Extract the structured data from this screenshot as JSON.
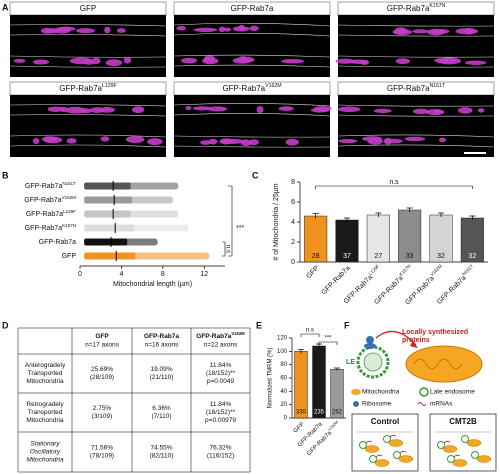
{
  "figure": {
    "panel_letters": [
      "A",
      "B",
      "C",
      "D",
      "E",
      "F"
    ],
    "images": [
      {
        "base": "GFP"
      },
      {
        "base": "GFP-Rab7a"
      },
      {
        "base": "GFP-Rab7a",
        "sup": "K157N"
      },
      {
        "base": "GFP-Rab7a",
        "sup": "L129F"
      },
      {
        "base": "GFP-Rab7a",
        "sup": "V162M"
      },
      {
        "base": "GFP-Rab7a",
        "sup": "N161T"
      }
    ],
    "table": {
      "header": [
        {
          "name": {
            "base": "GFP"
          },
          "n": "n=17 axons"
        },
        {
          "name": {
            "base": "GFP-Rab7a"
          },
          "n": "n=16 axons"
        },
        {
          "name": {
            "base": "GFP-Rab7a",
            "sup": "V162M"
          },
          "n": "n=22 axons"
        }
      ],
      "rows": [
        {
          "label": [
            "Anterogradely",
            "Transported",
            "Mitochondria"
          ],
          "cells": [
            [
              "25.69%",
              "(28/109)"
            ],
            [
              "19.09%",
              "(21/110)"
            ],
            [
              "11.84%",
              "(18/152)**",
              "p=0.0049"
            ]
          ]
        },
        {
          "label": [
            "Retrogradely",
            "Transported",
            "Mitochondria"
          ],
          "cells": [
            [
              "2.75%",
              "(3/109)"
            ],
            [
              "6.36%",
              "(7/110)"
            ],
            [
              "11.84%",
              "(18/152)**",
              "p=0.00979"
            ]
          ]
        },
        {
          "label": [
            "Stationary",
            "Oscillatory",
            "Mitochondria"
          ],
          "cells": [
            [
              "71.56%",
              "(78/109)"
            ],
            [
              "74.55%",
              "(82/110)"
            ],
            [
              "76.32%",
              "(116/152)"
            ]
          ]
        }
      ]
    },
    "diagram": {
      "proteins": [
        "Locally synthesized",
        "proteins"
      ],
      "le": "LE",
      "legend": [
        "Mitochondria",
        "Ribosome",
        "Late endosome",
        "mRNAs"
      ],
      "conditions": [
        "Control",
        "CMT2B"
      ]
    }
  },
  "chart_data": [
    {
      "type": "strip",
      "categories": [
        {
          "base": "GFP-Rab7a",
          "sup": "N161T"
        },
        {
          "base": "GFP-Rab7a",
          "sup": "V162M"
        },
        {
          "base": "GFP-Rab7a",
          "sup": "L129F"
        },
        {
          "base": "GFP-Rab7a",
          "sup": "K157N"
        },
        {
          "base": "GFP-Rab7a"
        },
        {
          "base": "GFP"
        }
      ],
      "colors": [
        "#555555",
        "#9a9a9a",
        "#c4c4c4",
        "#dcdcdc",
        "#111111",
        "#f0921e"
      ],
      "min": [
        0.4,
        0.4,
        0.4,
        0.4,
        0.4,
        0.4
      ],
      "median": [
        3.2,
        3.3,
        3.2,
        3.4,
        3.0,
        3.5
      ],
      "max": [
        9.5,
        9.0,
        9.5,
        10.5,
        7.5,
        12.5
      ],
      "xlim": [
        0,
        14
      ],
      "xticks": [
        0,
        4,
        8,
        12
      ],
      "xlabel": "Mitochondrial length (µm)",
      "annotations": [
        "***",
        "n.s"
      ]
    },
    {
      "type": "bar",
      "categories": [
        {
          "base": "GFP"
        },
        {
          "base": "GFP-Rab7a"
        },
        {
          "base": "GFP-Rab7a",
          "sup": "L129F"
        },
        {
          "base": "GFP-Rab7a",
          "sup": "K157N"
        },
        {
          "base": "GFP-Rab7a",
          "sup": "V162M"
        },
        {
          "base": "GFP-Rab7a",
          "sup": "N161T"
        }
      ],
      "values": [
        4.6,
        4.2,
        4.7,
        5.2,
        4.7,
        4.4
      ],
      "errors": [
        0.25,
        0.2,
        0.2,
        0.2,
        0.2,
        0.2
      ],
      "n": [
        28,
        37,
        27,
        33,
        32,
        32
      ],
      "colors": [
        "#f0921e",
        "#1a1a1a",
        "#e6e6e6",
        "#8c8c8c",
        "#d4d4d4",
        "#555555"
      ],
      "ylabel": "# of Mitochondria / 25µm",
      "ylim": [
        0,
        8
      ],
      "yticks": [
        0,
        2,
        4,
        6,
        8
      ],
      "annotations": [
        "n.s"
      ]
    },
    {
      "type": "bar",
      "categories": [
        {
          "base": "GFP"
        },
        {
          "base": "GFP-Rab7a"
        },
        {
          "base": "GFP-Rab7a",
          "sup": "V162M"
        }
      ],
      "values": [
        100,
        108,
        73
      ],
      "errors": [
        3,
        3,
        2
      ],
      "n": [
        330,
        235,
        262
      ],
      "colors": [
        "#f0921e",
        "#1a1a1a",
        "#9a9a9a"
      ],
      "ylabel": "Normalized TMRM (%)",
      "ylim": [
        0,
        120
      ],
      "yticks": [
        0,
        20,
        40,
        60,
        80,
        100,
        120
      ],
      "annotations": [
        "n.s",
        "***"
      ]
    }
  ]
}
